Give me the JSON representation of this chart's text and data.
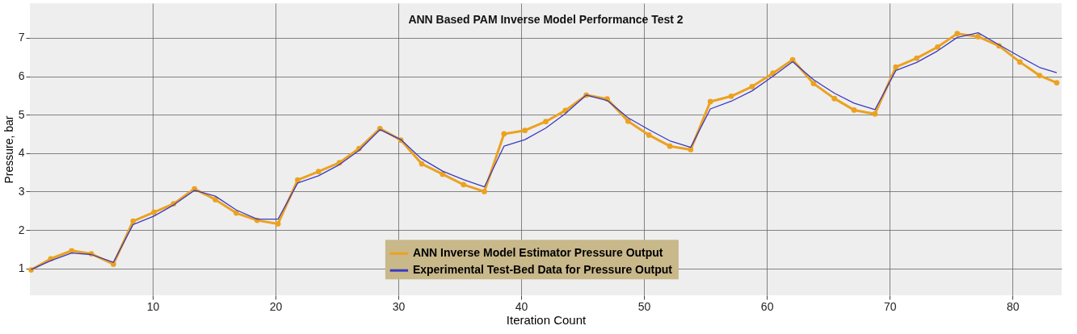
{
  "chart_data": {
    "type": "line",
    "title": "ANN Based PAM Inverse Model Performance Test 2",
    "xlabel": "Iteration Count",
    "ylabel": "Pressure, bar",
    "x": [
      0.1,
      1.7,
      3.4,
      5.0,
      6.8,
      8.4,
      10.1,
      11.7,
      13.4,
      15.1,
      16.8,
      18.5,
      20.2,
      21.8,
      23.5,
      25.2,
      26.8,
      28.5,
      30.2,
      31.9,
      33.6,
      35.3,
      37.0,
      38.6,
      40.3,
      42.0,
      43.6,
      45.3,
      47.0,
      48.7,
      50.4,
      52.1,
      53.8,
      55.4,
      57.1,
      58.8,
      60.5,
      62.1,
      63.8,
      65.5,
      67.1,
      68.8,
      70.5,
      72.2,
      73.9,
      75.5,
      77.2,
      78.9,
      80.6,
      82.2,
      83.6
    ],
    "series": [
      {
        "name": "ANN Inverse Model Estimator Pressure Output",
        "color": "#eba21f",
        "marker": "circle",
        "values": [
          0.96,
          1.25,
          1.46,
          1.38,
          1.11,
          2.23,
          2.46,
          2.68,
          3.07,
          2.79,
          2.44,
          2.25,
          2.16,
          3.3,
          3.52,
          3.75,
          4.12,
          4.64,
          4.34,
          3.72,
          3.45,
          3.18,
          3.0,
          4.5,
          4.59,
          4.82,
          5.11,
          5.51,
          5.41,
          4.83,
          4.47,
          4.18,
          4.09,
          5.34,
          5.48,
          5.73,
          6.08,
          6.43,
          5.81,
          5.42,
          5.12,
          5.02,
          6.24,
          6.47,
          6.76,
          7.11,
          7.03,
          6.79,
          6.37,
          6.02,
          5.83
        ]
      },
      {
        "name": "Experimental Test-Bed  Data for Pressure Output",
        "color": "#3a3ac4",
        "values": [
          0.97,
          1.2,
          1.4,
          1.36,
          1.16,
          2.14,
          2.36,
          2.65,
          3.03,
          2.88,
          2.52,
          2.28,
          2.28,
          3.22,
          3.41,
          3.7,
          4.07,
          4.61,
          4.35,
          3.85,
          3.53,
          3.31,
          3.12,
          4.18,
          4.35,
          4.65,
          5.03,
          5.51,
          5.37,
          4.92,
          4.61,
          4.32,
          4.15,
          5.15,
          5.35,
          5.62,
          6.0,
          6.38,
          5.91,
          5.56,
          5.3,
          5.13,
          6.15,
          6.36,
          6.66,
          7.01,
          7.13,
          6.82,
          6.51,
          6.23,
          6.09
        ]
      }
    ],
    "xlim": [
      0,
      84
    ],
    "ylim": [
      0.3,
      7.9
    ],
    "xticks": [
      10,
      20,
      30,
      40,
      50,
      60,
      70,
      80
    ],
    "yticks": [
      1,
      2,
      3,
      4,
      5,
      6,
      7
    ],
    "grid": true,
    "legend": "bottom",
    "line_style": "solid"
  }
}
